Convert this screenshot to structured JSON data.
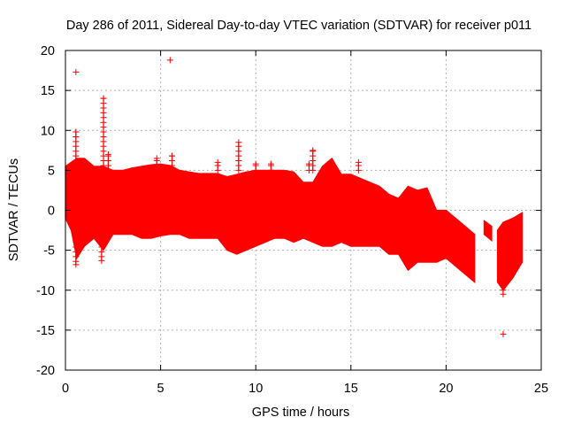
{
  "chart_data": {
    "type": "scatter",
    "title": "Day 286 of 2011, Sidereal Day-to-day VTEC variation (SDTVAR) for receiver p011",
    "xlabel": "GPS time / hours",
    "ylabel": "SDTVAR / TECUs",
    "xlim": [
      0,
      25
    ],
    "ylim": [
      -20,
      20
    ],
    "x_ticks": [
      0,
      5,
      10,
      15,
      20,
      25
    ],
    "x_tick_labels": [
      "0",
      "5",
      "10",
      "15",
      "20",
      "25"
    ],
    "y_ticks": [
      -20,
      -15,
      -10,
      -5,
      0,
      5,
      10,
      15,
      20
    ],
    "y_tick_labels": [
      "-20",
      "-15",
      "-10",
      "-5",
      "0",
      "5",
      "10",
      "15",
      "20"
    ],
    "grid": true,
    "marker": "+",
    "series_color": "#ff0000",
    "series": [
      {
        "name": "SDTVAR",
        "envelope": {
          "x": [
            0.0,
            0.3,
            0.6,
            1.0,
            1.5,
            2.0,
            2.5,
            3.0,
            3.5,
            4.0,
            4.5,
            5.0,
            5.5,
            6.0,
            6.5,
            7.0,
            7.5,
            8.0,
            8.5,
            9.0,
            9.5,
            10.0,
            10.5,
            11.0,
            11.5,
            12.0,
            12.5,
            13.0,
            13.5,
            14.0,
            14.5,
            15.0,
            15.5,
            16.0,
            16.5,
            17.0,
            17.5,
            18.0,
            18.5,
            19.0,
            19.5,
            20.0,
            20.5,
            21.0,
            21.5
          ],
          "upper": [
            5.5,
            6.0,
            6.5,
            6.5,
            5.5,
            5.5,
            5.0,
            5.0,
            5.3,
            5.5,
            5.7,
            5.8,
            5.6,
            5.0,
            4.8,
            4.6,
            4.6,
            4.6,
            4.2,
            4.5,
            4.8,
            5.0,
            5.0,
            5.0,
            5.0,
            4.8,
            3.5,
            3.5,
            5.5,
            6.5,
            4.5,
            4.5,
            4.0,
            3.5,
            3.0,
            2.0,
            1.5,
            3.0,
            2.5,
            2.8,
            0.0,
            0.0,
            -1.0,
            -2.0,
            -3.0
          ],
          "lower": [
            -1.0,
            -2.5,
            -6.0,
            -4.5,
            -3.5,
            -5.0,
            -3.0,
            -3.0,
            -3.0,
            -3.5,
            -3.5,
            -3.2,
            -3.0,
            -3.0,
            -3.5,
            -3.5,
            -3.5,
            -3.5,
            -5.0,
            -5.5,
            -5.0,
            -4.5,
            -4.0,
            -3.5,
            -3.5,
            -4.0,
            -3.5,
            -4.0,
            -4.5,
            -4.5,
            -4.0,
            -4.5,
            -4.5,
            -4.5,
            -4.5,
            -5.5,
            -5.5,
            -7.5,
            -6.5,
            -6.5,
            -6.5,
            -6.0,
            -7.0,
            -8.0,
            -9.0
          ]
        },
        "late_segments": [
          {
            "x": [
              22.0,
              22.4
            ],
            "upper": [
              -1.3,
              -2.0
            ],
            "lower": [
              -3.0,
              -3.8
            ]
          },
          {
            "x": [
              22.7,
              23.0,
              23.5,
              24.0
            ],
            "upper": [
              -2.5,
              -1.5,
              -1.0,
              -0.3
            ],
            "lower": [
              -9.0,
              -10.0,
              -8.5,
              -6.5
            ]
          }
        ],
        "spikes": [
          {
            "x": 0.55,
            "y": 9.8
          },
          {
            "x": 2.0,
            "y": 14.0
          },
          {
            "x": 2.25,
            "y": 7.0
          },
          {
            "x": 4.8,
            "y": 6.5
          },
          {
            "x": 5.6,
            "y": 6.8
          },
          {
            "x": 8.0,
            "y": 6.0
          },
          {
            "x": 9.1,
            "y": 8.5
          },
          {
            "x": 10.0,
            "y": 5.8
          },
          {
            "x": 10.8,
            "y": 5.8
          },
          {
            "x": 12.8,
            "y": 5.8
          },
          {
            "x": 13.0,
            "y": 7.5
          },
          {
            "x": 15.4,
            "y": 6.0
          },
          {
            "x": 0.55,
            "y": -6.8
          },
          {
            "x": 1.9,
            "y": -6.3
          },
          {
            "x": 23.0,
            "y": -10.5
          }
        ],
        "outliers": [
          {
            "x": 0.55,
            "y": 17.3
          },
          {
            "x": 5.5,
            "y": 18.8
          },
          {
            "x": 23.0,
            "y": -15.5
          }
        ]
      }
    ]
  }
}
